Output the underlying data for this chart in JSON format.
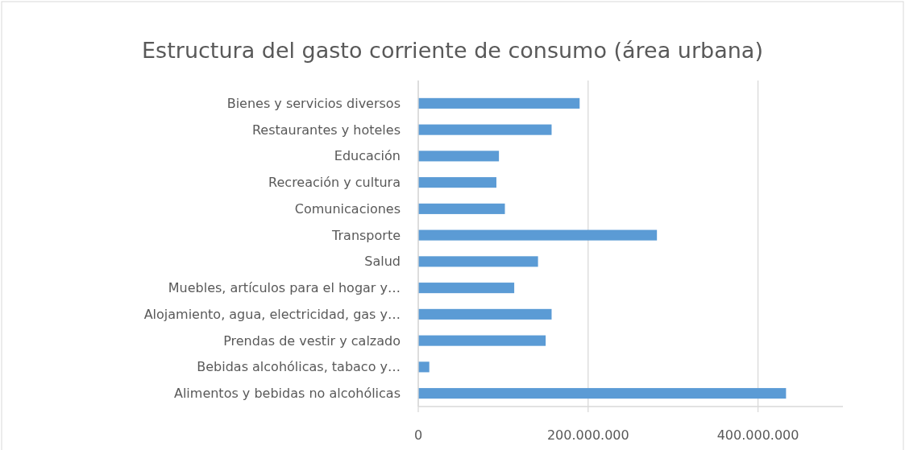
{
  "chart_data": {
    "type": "bar",
    "orientation": "horizontal",
    "title": "Estructura del gasto corriente de consumo (área urbana)",
    "categories": [
      "Bienes y servicios diversos",
      "Restaurantes y hoteles",
      "Educación",
      "Recreación y cultura",
      "Comunicaciones",
      "Transporte",
      "Salud",
      "Muebles, artículos para el hogar y…",
      "Alojamiento, agua, electricidad, gas y…",
      "Prendas de vestir y calzado",
      "Bebidas alcohólicas, tabaco y…",
      "Alimentos y bebidas no alcohólicas"
    ],
    "values": [
      190000000,
      157000000,
      95000000,
      92000000,
      102000000,
      281000000,
      141000000,
      113000000,
      157000000,
      150000000,
      13000000,
      433000000
    ],
    "color": "#5b9bd5",
    "xlim": [
      0,
      500000000
    ],
    "xticks": [
      0,
      {
        "value": 200000000,
        "label": "200.000.000"
      },
      {
        "value": 400000000,
        "label": "400.000.000"
      }
    ],
    "grid": "x"
  }
}
